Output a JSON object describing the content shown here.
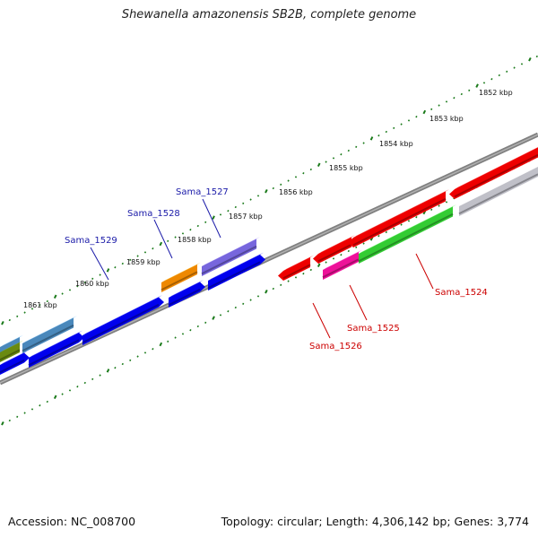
{
  "title": "Shewanella amazonensis SB2B, complete genome",
  "footer": {
    "accession": "Accession: NC_008700",
    "summary": "Topology: circular; Length: 4,306,142 bp; Genes: 3,774"
  },
  "scale_labels": [
    "1852 kbp",
    "1853 kbp",
    "1854 kbp",
    "1855 kbp",
    "1856 kbp",
    "1857 kbp",
    "1858 kbp",
    "1859 kbp",
    "1860 kbp",
    "1861 kbp"
  ],
  "gene_labels": [
    {
      "id": "Sama_1527",
      "color": "#1a1aa8"
    },
    {
      "id": "Sama_1528",
      "color": "#1a1aa8"
    },
    {
      "id": "Sama_1529",
      "color": "#1a1aa8"
    },
    {
      "id": "Sama_1524",
      "color": "#cc0000"
    },
    {
      "id": "Sama_1525",
      "color": "#cc0000"
    },
    {
      "id": "Sama_1526",
      "color": "#cc0000"
    }
  ],
  "colors": {
    "backbone": "#808080",
    "tick": "#1a7a1a",
    "forward_cds": "#0000ee",
    "reverse_cds": "#ee0000",
    "purple": "#7766dd",
    "orange": "#ee8800",
    "steelblue": "#4a88bb",
    "magenta": "#ee1199",
    "green": "#33cc33",
    "silver": "#c0c0c8",
    "olive": "#6a8a10"
  }
}
